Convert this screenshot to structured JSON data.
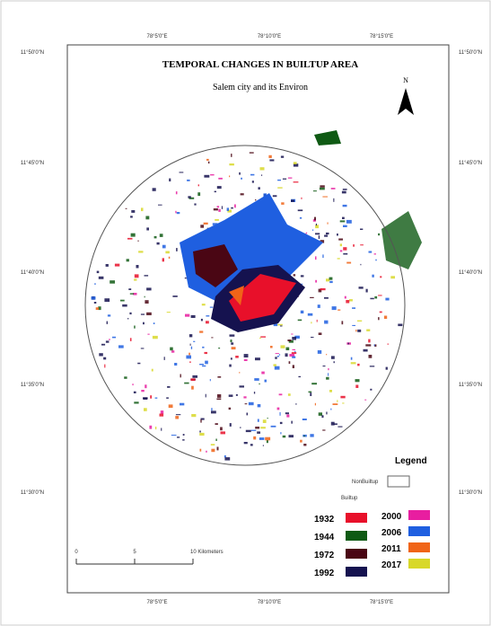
{
  "title": "TEMPORAL CHANGES IN BUILTUP AREA",
  "subtitle": "Salem city and its Environ",
  "north": "N",
  "grid_labels": {
    "top": [
      "78°5'0\"E",
      "78°10'0\"E",
      "78°15'0\"E"
    ],
    "bottom": [
      "78°5'0\"E",
      "78°10'0\"E",
      "78°15'0\"E"
    ],
    "left": [
      "11°50'0\"N",
      "11°45'0\"N",
      "11°40'0\"N",
      "11°35'0\"N",
      "11°30'0\"N"
    ],
    "right": [
      "11°50'0\"N",
      "11°45'0\"N",
      "11°40'0\"N",
      "11°35'0\"N",
      "11°30'0\"N"
    ]
  },
  "legend": {
    "title": "Legend",
    "nonbuiltup": "NonBuiltup",
    "builtup": "Builtup",
    "items": [
      {
        "label": "1932",
        "color": "#e8102a"
      },
      {
        "label": "1944",
        "color": "#0f5a14"
      },
      {
        "label": "1972",
        "color": "#4a0614"
      },
      {
        "label": "1992",
        "color": "#15124f"
      },
      {
        "label": "2000",
        "color": "#e81ea0"
      },
      {
        "label": "2006",
        "color": "#1f5fe0"
      },
      {
        "label": "2011",
        "color": "#f06418"
      },
      {
        "label": "2017",
        "color": "#d8d82a"
      }
    ]
  },
  "scale_bar": [
    "0",
    "5",
    "10 Kilometers"
  ]
}
